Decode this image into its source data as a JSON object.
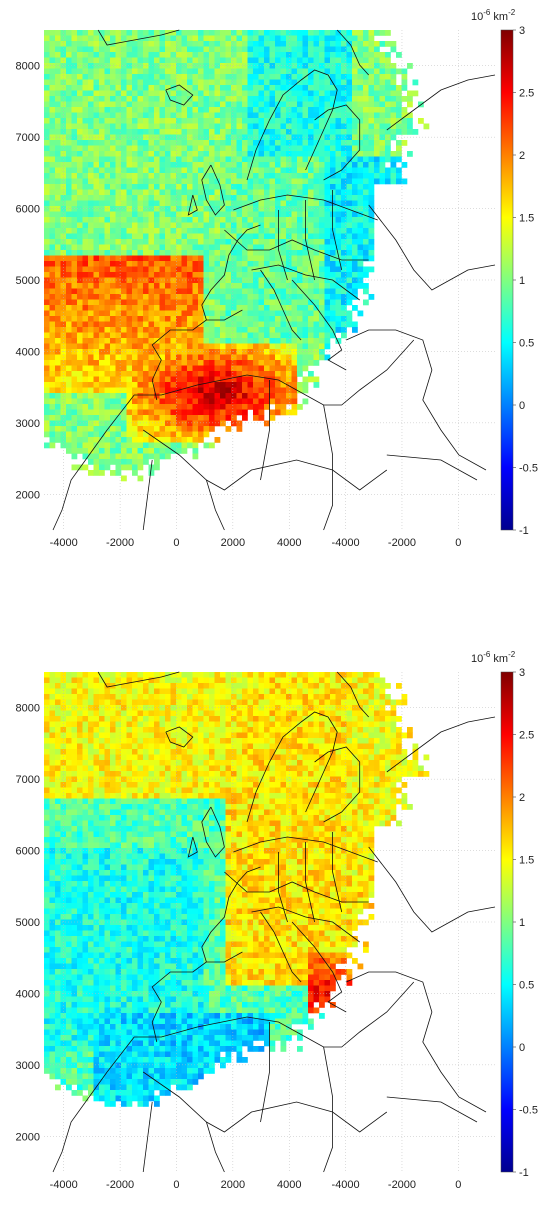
{
  "colormap": [
    "#00008f",
    "#0000ff",
    "#0080ff",
    "#00ffff",
    "#80ff80",
    "#ffff00",
    "#ff8000",
    "#ff0000",
    "#800000"
  ],
  "chart_data": [
    {
      "type": "heatmap",
      "title": "",
      "xlabel": "",
      "ylabel": "",
      "x_ticks": [
        "-4000",
        "-2000",
        "0",
        "2000",
        "4000",
        "-4000",
        "-2000",
        "0"
      ],
      "y_ticks": [
        "2000",
        "3000",
        "4000",
        "5000",
        "6000",
        "7000",
        "8000"
      ],
      "xlim": [
        -5000,
        5000
      ],
      "ylim": [
        1500,
        8500
      ],
      "grid": true,
      "colorbar": {
        "unit_base": "10",
        "unit_exp": "-6",
        "unit_km": " km",
        "unit_km_exp": "-2",
        "range": [
          -1,
          3
        ],
        "ticks": [
          "3",
          "2.5",
          "2",
          "1.5",
          "1",
          "0.5",
          "0",
          "-0.5",
          "-1"
        ]
      },
      "field": {
        "western_ocean": 1.0,
        "southwest_ocean_band": 1.9,
        "north_africa_hotspot": 2.8,
        "central_europe": 0.9,
        "scandinavia": 0.6,
        "eastern_europe": 0.5
      }
    },
    {
      "type": "heatmap",
      "title": "",
      "xlabel": "",
      "ylabel": "",
      "x_ticks": [
        "-4000",
        "-2000",
        "0",
        "2000",
        "4000",
        "-4000",
        "-2000",
        "0"
      ],
      "y_ticks": [
        "2000",
        "3000",
        "4000",
        "5000",
        "6000",
        "7000",
        "8000"
      ],
      "xlim": [
        -5000,
        5000
      ],
      "ylim": [
        1500,
        8500
      ],
      "grid": true,
      "colorbar": {
        "unit_base": "10",
        "unit_exp": "-6",
        "unit_km": " km",
        "unit_km_exp": "-2",
        "range": [
          -1,
          3
        ],
        "ticks": [
          "3",
          "2.5",
          "2",
          "1.5",
          "1",
          "0.5",
          "0",
          "-0.5",
          "-1"
        ]
      },
      "field": {
        "western_ocean": 0.8,
        "north_atlantic": 1.5,
        "central_europe": 1.6,
        "scandinavia": 1.6,
        "balkans_hotspot": 2.6,
        "north_africa": 0.3,
        "eastern_europe": 1.5
      }
    }
  ]
}
